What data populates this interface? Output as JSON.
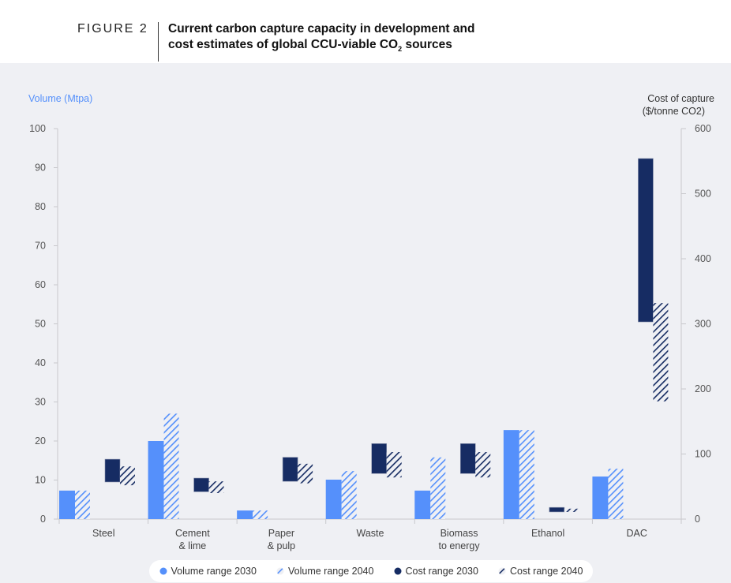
{
  "figure": {
    "label": "FIGURE 2",
    "title_line1": "Current carbon capture capacity in development and",
    "title_line2_pre": "cost estimates of global CCU-viable CO",
    "title_line2_sub": "2",
    "title_line2_post": " sources"
  },
  "chart_data": {
    "type": "bar",
    "categories": [
      [
        "Steel"
      ],
      [
        "Cement",
        "& lime"
      ],
      [
        "Paper",
        "& pulp"
      ],
      [
        "Waste"
      ],
      [
        "Biomass",
        "to energy"
      ],
      [
        "Ethanol"
      ],
      [
        "DAC"
      ]
    ],
    "ylabel_left": "Volume (Mtpa)",
    "ylabel_right_line1": "Cost of capture",
    "ylabel_right_line2": "($/tonne CO2)",
    "ylim_left": [
      0,
      100
    ],
    "ylim_right": [
      0,
      600
    ],
    "yticks_left": [
      0,
      10,
      20,
      30,
      40,
      50,
      60,
      70,
      80,
      90,
      100
    ],
    "yticks_right": [
      0,
      100,
      200,
      300,
      400,
      500,
      600
    ],
    "grid": false,
    "legend_position": "bottom",
    "colors": {
      "volume": "#5590fb",
      "cost": "#162c63"
    },
    "series": [
      {
        "name": "Volume range 2030",
        "axis": "left",
        "style": "solid",
        "values": [
          7.3,
          20,
          2.2,
          10.1,
          7.3,
          22.8,
          10.9
        ]
      },
      {
        "name": "Volume range 2040",
        "axis": "left",
        "style": "hatched",
        "values": [
          7.3,
          27,
          2.2,
          12.3,
          15.8,
          22.8,
          12.9
        ]
      },
      {
        "name": "Cost range 2030",
        "axis": "right",
        "style": "solid",
        "ranges": [
          [
            57,
            92
          ],
          [
            42,
            63
          ],
          [
            58,
            95
          ],
          [
            70,
            116
          ],
          [
            70,
            116
          ],
          [
            11,
            18
          ],
          [
            303,
            554
          ]
        ]
      },
      {
        "name": "Cost range 2040",
        "axis": "right",
        "style": "hatched",
        "ranges": [
          [
            52,
            81
          ],
          [
            40,
            58
          ],
          [
            55,
            85
          ],
          [
            64,
            103
          ],
          [
            64,
            103
          ],
          [
            11,
            16
          ],
          [
            181,
            332
          ]
        ]
      }
    ]
  }
}
